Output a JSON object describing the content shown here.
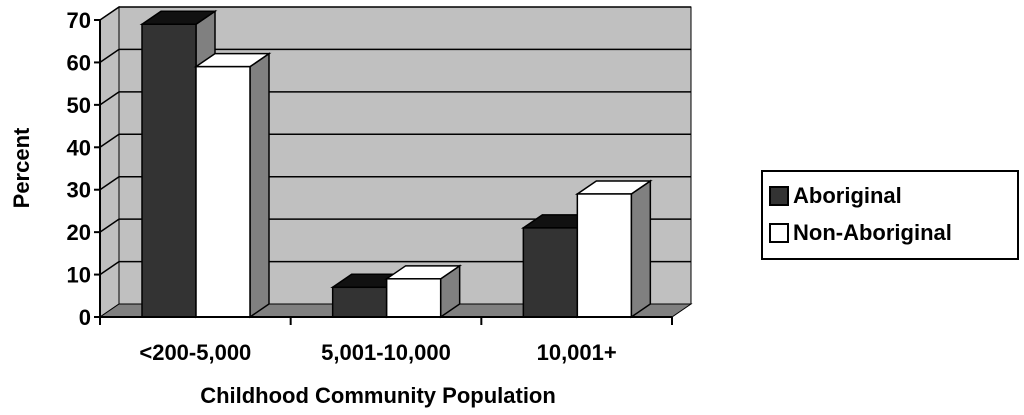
{
  "chart_data": {
    "type": "bar",
    "xlabel": "Childhood Community Population",
    "ylabel": "Percent",
    "categories": [
      "<200-5,000",
      "5,001-10,000",
      "10,001+"
    ],
    "series": [
      {
        "name": "Aboriginal",
        "values": [
          69,
          7,
          21
        ],
        "color": "#333333"
      },
      {
        "name": "Non-Aboriginal",
        "values": [
          59,
          9,
          29
        ],
        "color": "#ffffff"
      }
    ],
    "ylim": [
      0,
      70
    ],
    "yticks": [
      0,
      10,
      20,
      30,
      40,
      50,
      60,
      70
    ],
    "grid": true,
    "legend_position": "right",
    "style": "3d-clustered-column",
    "colors": {
      "plot_wall": "#c0c0c0",
      "side_wall": "#c0c0c0",
      "floor": "#808080",
      "bar_side": "#808080"
    }
  }
}
